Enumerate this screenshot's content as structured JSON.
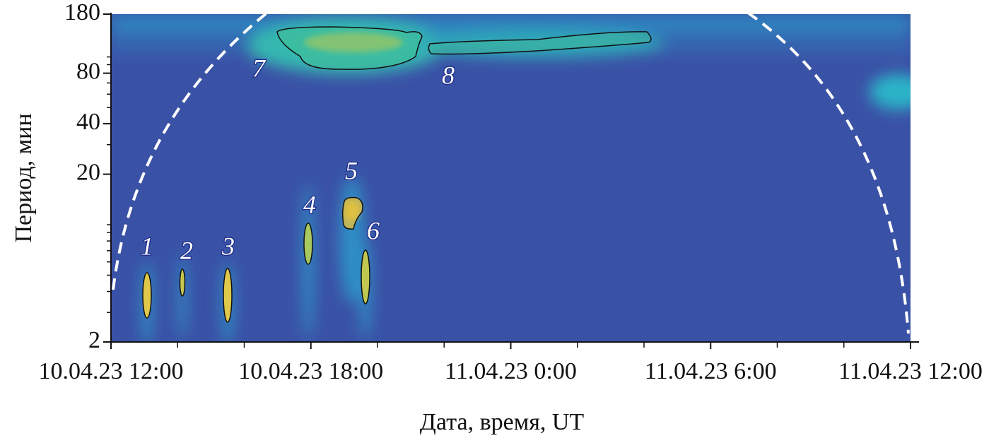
{
  "chart_data": {
    "type": "wavelet",
    "xlabel": "Дата, время, UT",
    "ylabel": "Период, мин",
    "xlim": [
      12,
      36
    ],
    "xticks": [
      {
        "value": 12,
        "label": "10.04.23 12:00"
      },
      {
        "value": 18,
        "label": "10.04.23 18:00"
      },
      {
        "value": 24,
        "label": "11.04.23 0:00"
      },
      {
        "value": 30,
        "label": "11.04.23 6:00"
      },
      {
        "value": 36,
        "label": "11.04.23 12:00"
      }
    ],
    "xminorticks": [
      14,
      16,
      20,
      22,
      26,
      28,
      32,
      34
    ],
    "ylim": [
      2,
      180
    ],
    "yticks": [
      2,
      20,
      40,
      80,
      180
    ],
    "yminorticks": [
      3,
      4,
      5,
      6,
      7,
      8,
      9,
      10,
      30,
      50,
      60,
      70,
      90,
      100
    ],
    "yscale": "log",
    "annotations": [
      "1",
      "2",
      "3",
      "4",
      "5",
      "6",
      "7",
      "8"
    ]
  }
}
